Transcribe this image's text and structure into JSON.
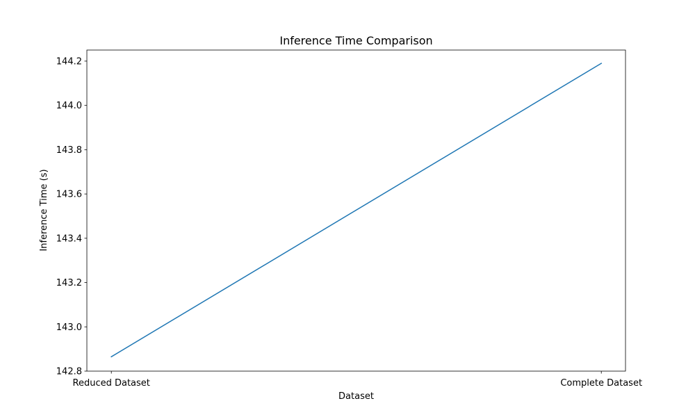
{
  "chart_data": {
    "type": "line",
    "title": "Inference Time Comparison",
    "xlabel": "Dataset",
    "ylabel": "Inference Time (s)",
    "categories": [
      "Reduced Dataset",
      "Complete Dataset"
    ],
    "series": [
      {
        "values": [
          142.865,
          144.19
        ],
        "color": "#1f77b4"
      }
    ],
    "ylim": [
      142.8,
      144.25
    ],
    "yticks": [
      142.8,
      143.0,
      143.2,
      143.4,
      143.6,
      143.8,
      144.0,
      144.2
    ],
    "grid": false,
    "legend": "none"
  }
}
